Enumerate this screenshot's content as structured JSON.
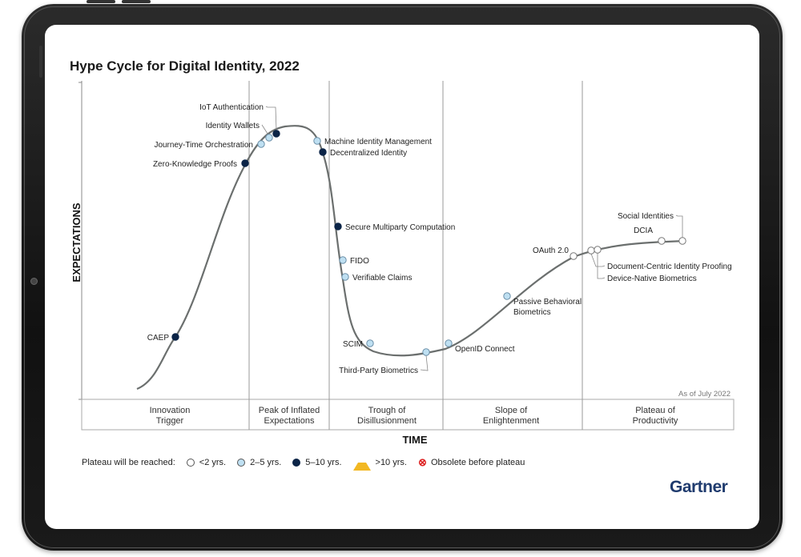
{
  "title": "Hype Cycle for Digital Identity, 2022",
  "axes": {
    "y_label": "EXPECTATIONS",
    "x_label": "TIME"
  },
  "as_of": "As of July 2022",
  "phases": [
    {
      "line1": "Innovation",
      "line2": "Trigger"
    },
    {
      "line1": "Peak of Inflated",
      "line2": "Expectations"
    },
    {
      "line1": "Trough of",
      "line2": "Disillusionment"
    },
    {
      "line1": "Slope of",
      "line2": "Enlightenment"
    },
    {
      "line1": "Plateau of",
      "line2": "Productivity"
    }
  ],
  "technologies": [
    {
      "name": "CAEP",
      "category": "5-10"
    },
    {
      "name": "Zero-Knowledge Proofs",
      "category": "5-10"
    },
    {
      "name": "Journey-Time Orchestration",
      "category": "2-5"
    },
    {
      "name": "Identity Wallets",
      "category": "2-5"
    },
    {
      "name": "IoT Authentication",
      "category": "5-10"
    },
    {
      "name": "Machine Identity Management",
      "category": "2-5"
    },
    {
      "name": "Decentralized Identity",
      "category": "5-10"
    },
    {
      "name": "Secure Multiparty Computation",
      "category": "5-10"
    },
    {
      "name": "FIDO",
      "category": "2-5"
    },
    {
      "name": "Verifiable Claims",
      "category": "2-5"
    },
    {
      "name": "SCIM",
      "category": "2-5"
    },
    {
      "name": "Third-Party Biometrics",
      "category": "2-5"
    },
    {
      "name": "OpenID Connect",
      "category": "2-5"
    },
    {
      "name": "Passive Behavioral",
      "category": "2-5",
      "line2": "Biometrics"
    },
    {
      "name": "OAuth 2.0",
      "category": "<2"
    },
    {
      "name": "Document-Centric Identity Proofing",
      "category": "<2"
    },
    {
      "name": "Device-Native Biometrics",
      "category": "<2"
    },
    {
      "name": "DCIA",
      "category": "<2"
    },
    {
      "name": "Social Identities",
      "category": "<2"
    }
  ],
  "legend": {
    "title": "Plateau will be reached:",
    "items": [
      {
        "label": "<2 yrs.",
        "color": "#ffffff"
      },
      {
        "label": "2–5 yrs.",
        "color": "#bfe0f2"
      },
      {
        "label": "5–10 yrs.",
        "color": "#0b2447"
      },
      {
        "label": ">10 yrs.",
        "color": "#f2b823"
      },
      {
        "label": "Obsolete before plateau",
        "color": "#d22222"
      }
    ]
  },
  "brand": "Gartner",
  "colors": {
    "lt2": "#ffffff",
    "y2to5": "#bfe0f2",
    "y5to10": "#0b2447",
    "curve": "#666666"
  }
}
